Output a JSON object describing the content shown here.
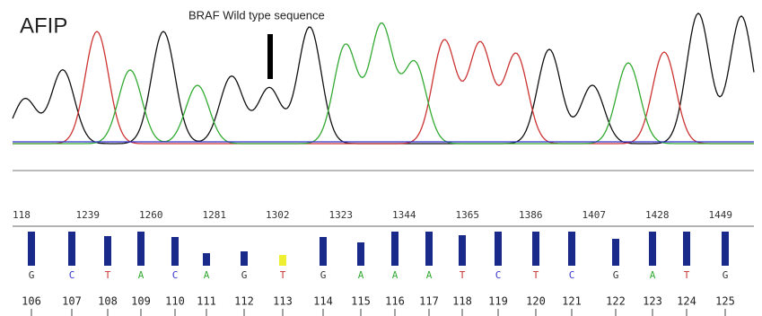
{
  "title": "AFIP",
  "annotation": "BRAF Wild type sequence",
  "positions": [
    "118",
    "1239",
    "1260",
    "1281",
    "1302",
    "1323",
    "1344",
    "1365",
    "1386",
    "1407",
    "1428",
    "1449"
  ],
  "bases": [
    {
      "letter": "G",
      "index": "106",
      "quality": 38
    },
    {
      "letter": "C",
      "index": "107",
      "quality": 38
    },
    {
      "letter": "T",
      "index": "108",
      "quality": 33
    },
    {
      "letter": "A",
      "index": "109",
      "quality": 38
    },
    {
      "letter": "C",
      "index": "110",
      "quality": 32
    },
    {
      "letter": "A",
      "index": "111",
      "quality": 14
    },
    {
      "letter": "G",
      "index": "112",
      "quality": 16
    },
    {
      "letter": "T",
      "index": "113",
      "quality": 12
    },
    {
      "letter": "G",
      "index": "114",
      "quality": 32
    },
    {
      "letter": "A",
      "index": "115",
      "quality": 26
    },
    {
      "letter": "A",
      "index": "116",
      "quality": 38
    },
    {
      "letter": "A",
      "index": "117",
      "quality": 38
    },
    {
      "letter": "T",
      "index": "118",
      "quality": 34
    },
    {
      "letter": "C",
      "index": "119",
      "quality": 38
    },
    {
      "letter": "T",
      "index": "120",
      "quality": 38
    },
    {
      "letter": "C",
      "index": "121",
      "quality": 38
    },
    {
      "letter": "G",
      "index": "122",
      "quality": 30
    },
    {
      "letter": "A",
      "index": "123",
      "quality": 38
    },
    {
      "letter": "T",
      "index": "124",
      "quality": 38
    },
    {
      "letter": "G",
      "index": "125",
      "quality": 38
    }
  ]
}
